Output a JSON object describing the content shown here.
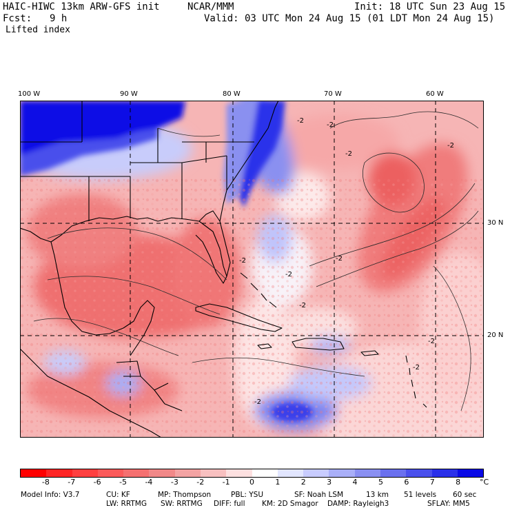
{
  "header": {
    "model_title": "HAIC-HIWC 13km ARW-GFS init",
    "org": "NCAR/MMM",
    "init": "Init: 18 UTC Sun 23 Aug 15",
    "fcst_label": "Fcst:",
    "fcst_value": "9 h",
    "valid": "Valid: 03 UTC Mon 24 Aug 15 (01 LDT Mon 24 Aug 15)",
    "field": "Lifted index"
  },
  "map": {
    "lon_labels": [
      "100 W",
      "90 W",
      "80 W",
      "70 W",
      "60 W"
    ],
    "lat_labels": [
      "30 N",
      "20 N"
    ],
    "contour_labels": [
      "-2",
      "-2",
      "-2",
      "-2",
      "-2",
      "-2",
      "-2",
      "-2",
      "-2",
      "-2",
      "-2"
    ]
  },
  "colorbar": {
    "unit": "°C",
    "labels": [
      "-8",
      "-7",
      "-6",
      "-5",
      "-4",
      "-3",
      "-2",
      "-1",
      "0",
      "1",
      "2",
      "3",
      "4",
      "5",
      "6",
      "7",
      "8"
    ],
    "colors": [
      "#ff0000",
      "#ff2525",
      "#ff4040",
      "#fb5a5a",
      "#f57070",
      "#f18888",
      "#f3a3a3",
      "#f8c0c0",
      "#fde0e0",
      "#ffffff",
      "#e2e6ff",
      "#c8ccff",
      "#a9aff8",
      "#8a90f2",
      "#6a70ee",
      "#4a50ec",
      "#2a30ea",
      "#0a0ae6"
    ]
  },
  "model_info": {
    "line1": [
      "Model Info: V3.7",
      "CU: KF",
      "MP: Thompson",
      "PBL: YSU",
      "SF: Noah LSM",
      "13 km",
      "51 levels",
      "60 sec"
    ],
    "line2": [
      "LW: RRTMG",
      "SW: RRTMG",
      "DIFF: full",
      "KM: 2D Smagor",
      "DAMP: Rayleigh3",
      "SFLAY: MM5"
    ]
  }
}
